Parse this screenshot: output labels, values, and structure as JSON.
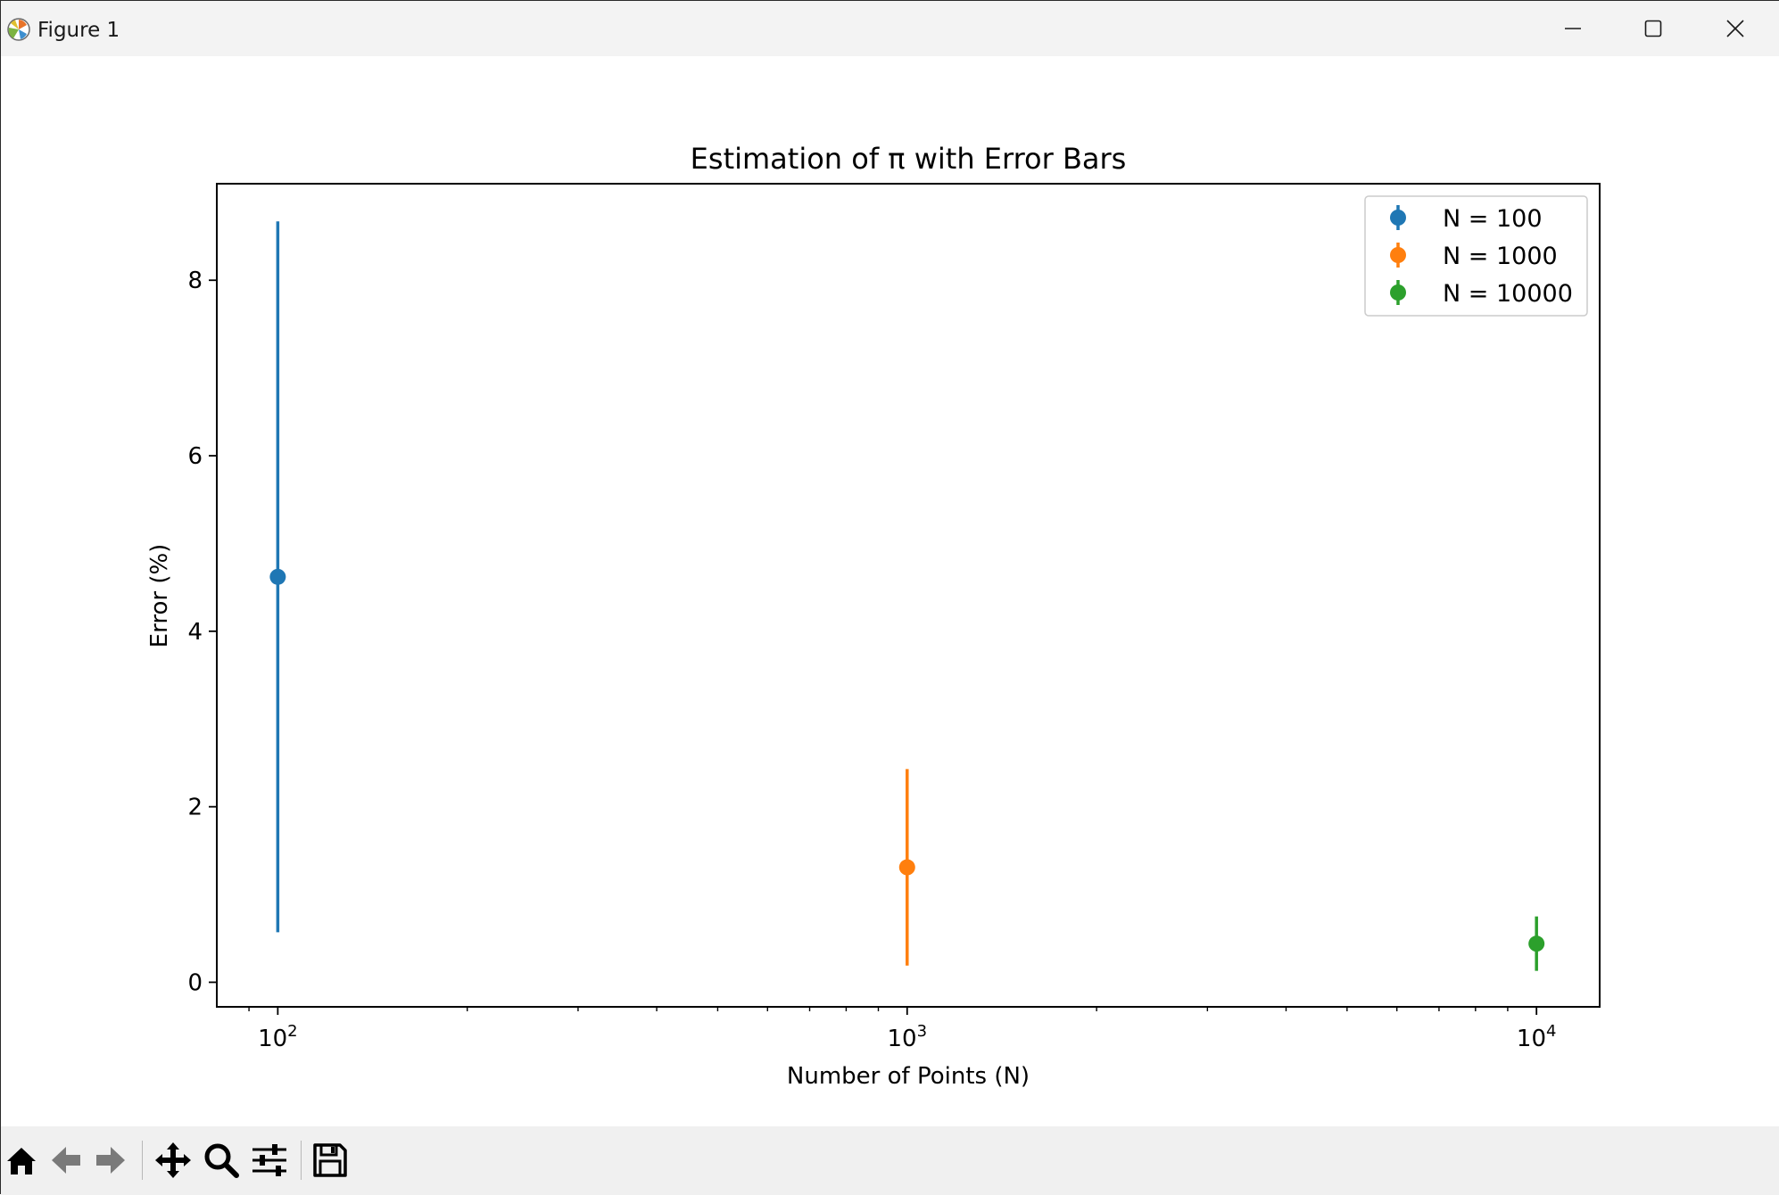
{
  "window": {
    "title": "Figure 1"
  },
  "chart_data": {
    "type": "scatter",
    "title": "Estimation of π with Error Bars",
    "xlabel": "Number of Points (N)",
    "ylabel": "Error (%)",
    "xscale": "log",
    "xlim": [
      80,
      12600
    ],
    "ylim": [
      -0.28,
      9.1
    ],
    "xticks": [
      {
        "value": 100,
        "label": "10",
        "exp": "2"
      },
      {
        "value": 1000,
        "label": "10",
        "exp": "3"
      },
      {
        "value": 10000,
        "label": "10",
        "exp": "4"
      }
    ],
    "yticks": [
      0,
      2,
      4,
      6,
      8
    ],
    "grid": false,
    "legend_position": "top-right",
    "series": [
      {
        "name": "N = 100",
        "x": 100,
        "y": 4.62,
        "yerr": 4.05,
        "color": "#1f77b4"
      },
      {
        "name": "N = 1000",
        "x": 1000,
        "y": 1.31,
        "yerr": 1.12,
        "color": "#ff7f0e"
      },
      {
        "name": "N = 10000",
        "x": 10000,
        "y": 0.44,
        "yerr": 0.31,
        "color": "#2ca02c"
      }
    ]
  },
  "toolbar": {
    "items": [
      {
        "name": "home-button",
        "icon": "home-icon"
      },
      {
        "name": "back-button",
        "icon": "arrow-left-icon"
      },
      {
        "name": "forward-button",
        "icon": "arrow-right-icon"
      },
      {
        "name": "pan-button",
        "icon": "move-icon"
      },
      {
        "name": "zoom-button",
        "icon": "magnifier-icon"
      },
      {
        "name": "configure-subplots-button",
        "icon": "sliders-icon"
      },
      {
        "name": "save-button",
        "icon": "floppy-disk-icon"
      }
    ]
  }
}
